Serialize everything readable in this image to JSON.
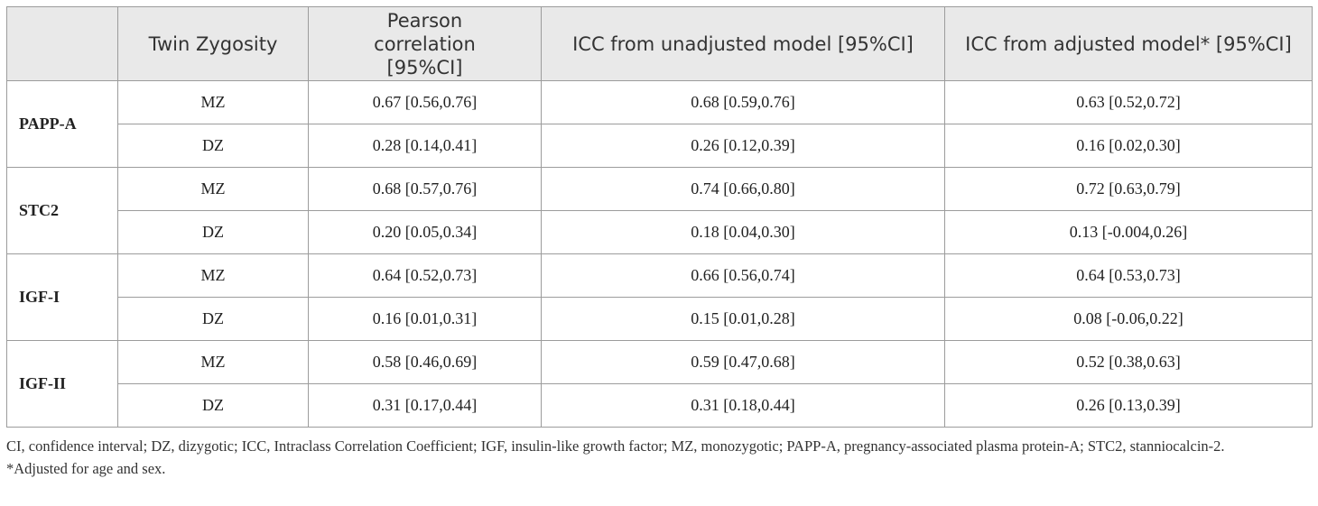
{
  "table": {
    "headers": [
      "",
      "Twin Zygosity",
      "Pearson correlation [95%CI]",
      "ICC from unadjusted model [95%CI]",
      "ICC from adjusted model* [95%CI]"
    ],
    "groups": [
      {
        "marker": "PAPP-A",
        "rows": [
          {
            "zygosity": "MZ",
            "pearson": "0.67 [0.56,0.76]",
            "icc_unadj": "0.68 [0.59,0.76]",
            "icc_adj": "0.63 [0.52,0.72]"
          },
          {
            "zygosity": "DZ",
            "pearson": "0.28 [0.14,0.41]",
            "icc_unadj": "0.26 [0.12,0.39]",
            "icc_adj": "0.16 [0.02,0.30]"
          }
        ]
      },
      {
        "marker": "STC2",
        "rows": [
          {
            "zygosity": "MZ",
            "pearson": "0.68 [0.57,0.76]",
            "icc_unadj": "0.74 [0.66,0.80]",
            "icc_adj": "0.72 [0.63,0.79]"
          },
          {
            "zygosity": "DZ",
            "pearson": "0.20 [0.05,0.34]",
            "icc_unadj": "0.18 [0.04,0.30]",
            "icc_adj": "0.13 [-0.004,0.26]"
          }
        ]
      },
      {
        "marker": "IGF-I",
        "rows": [
          {
            "zygosity": "MZ",
            "pearson": "0.64 [0.52,0.73]",
            "icc_unadj": "0.66 [0.56,0.74]",
            "icc_adj": "0.64 [0.53,0.73]"
          },
          {
            "zygosity": "DZ",
            "pearson": "0.16 [0.01,0.31]",
            "icc_unadj": "0.15 [0.01,0.28]",
            "icc_adj": "0.08 [-0.06,0.22]"
          }
        ]
      },
      {
        "marker": "IGF-II",
        "rows": [
          {
            "zygosity": "MZ",
            "pearson": "0.58 [0.46,0.69]",
            "icc_unadj": "0.59 [0.47,0.68]",
            "icc_adj": "0.52 [0.38,0.63]"
          },
          {
            "zygosity": "DZ",
            "pearson": "0.31 [0.17,0.44]",
            "icc_unadj": "0.31 [0.18,0.44]",
            "icc_adj": "0.26 [0.13,0.39]"
          }
        ]
      }
    ]
  },
  "footnotes": {
    "abbreviations": "CI, confidence interval; DZ, dizygotic; ICC, Intraclass Correlation Coefficient; IGF, insulin-like growth factor; MZ, monozygotic; PAPP-A, pregnancy-associated plasma protein-A; STC2, stanniocalcin-2.",
    "adjusted": "*Adjusted for age and sex."
  }
}
